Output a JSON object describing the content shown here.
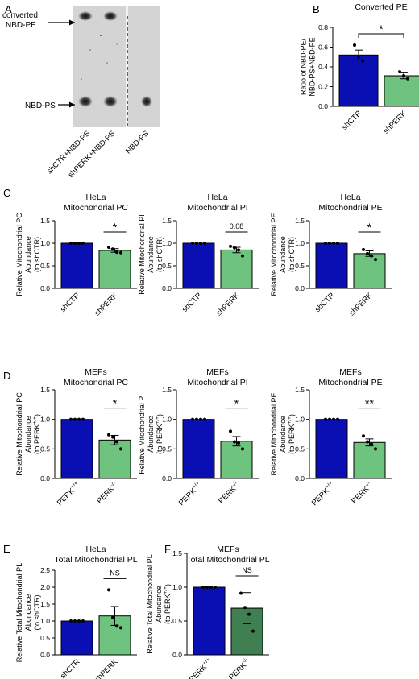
{
  "figure": {
    "blot": {
      "panel": "A",
      "label_top": [
        "converted",
        "NBD-PE"
      ],
      "label_bottom": "NBD-PS",
      "lanes": [
        "shCTR+NBD-PS",
        "shPERK+NBD-PS",
        "NBD-PS"
      ]
    }
  },
  "chart_data": [
    {
      "id": "B",
      "panel": "B",
      "type": "bar",
      "title": [
        "Converted PE"
      ],
      "ylabel": [
        "Ratio of NBD-PE/",
        "NBD-PS+NBD-PE"
      ],
      "categories": [
        "shCTR",
        "shPERK"
      ],
      "values": [
        0.52,
        0.31
      ],
      "errors": [
        0.05,
        0.03
      ],
      "points": [
        [
          0.62,
          0.5,
          0.46
        ],
        [
          0.35,
          0.31,
          0.28
        ]
      ],
      "ylim": [
        0,
        0.8
      ],
      "yticks": [
        "0.0",
        "0.2",
        "0.4",
        "0.6",
        "0.8"
      ],
      "colors": [
        "#0a0fb4",
        "#6ec37e"
      ],
      "significance": "*"
    },
    {
      "id": "C1",
      "panel": "C",
      "type": "bar",
      "title": [
        "HeLa",
        "Mitochondrial PC"
      ],
      "ylabel": [
        "Relative Mitochondrial PC",
        "Abundance",
        "(to shCTR)"
      ],
      "categories": [
        "shCTR",
        "shPERK"
      ],
      "values": [
        1.0,
        0.84
      ],
      "errors": [
        0.0,
        0.04
      ],
      "points": [
        [
          1.0,
          1.0,
          1.0,
          1.0
        ],
        [
          0.91,
          0.87,
          0.8,
          0.79
        ]
      ],
      "ylim": [
        0,
        1.5
      ],
      "yticks": [
        "0.0",
        "0.5",
        "1.0",
        "1.5"
      ],
      "colors": [
        "#0a0fb4",
        "#6ec37e"
      ],
      "significance": "*"
    },
    {
      "id": "C2",
      "type": "bar",
      "title": [
        "HeLa",
        "Mitochondrial PI"
      ],
      "ylabel": [
        "Relative Mitochondrial PI",
        "Abundance",
        "(to shCTR)"
      ],
      "categories": [
        "shCTR",
        "shPERK"
      ],
      "values": [
        1.0,
        0.85
      ],
      "errors": [
        0.0,
        0.06
      ],
      "points": [
        [
          1.0,
          1.0,
          1.0,
          1.0
        ],
        [
          0.93,
          0.9,
          0.85,
          0.72
        ]
      ],
      "ylim": [
        0,
        1.5
      ],
      "yticks": [
        "0.0",
        "0.5",
        "1.0",
        "1.5"
      ],
      "colors": [
        "#0a0fb4",
        "#6ec37e"
      ],
      "significance": "0.08"
    },
    {
      "id": "C3",
      "type": "bar",
      "title": [
        "HeLa",
        "Mitochondrial PE"
      ],
      "ylabel": [
        "Relative Mitochondrial PE",
        "Abundance",
        "(to shCTR)"
      ],
      "categories": [
        "shCTR",
        "shPERK"
      ],
      "values": [
        1.0,
        0.77
      ],
      "errors": [
        0.0,
        0.06
      ],
      "points": [
        [
          1.0,
          1.0,
          1.0,
          1.0
        ],
        [
          0.86,
          0.77,
          0.72,
          0.64
        ]
      ],
      "ylim": [
        0,
        1.5
      ],
      "yticks": [
        "0.0",
        "0.5",
        "1.0",
        "1.5"
      ],
      "colors": [
        "#0a0fb4",
        "#6ec37e"
      ],
      "significance": "*"
    },
    {
      "id": "D1",
      "panel": "D",
      "type": "bar",
      "title": [
        "MEFs",
        "Mitochondrial PC"
      ],
      "ylabel": [
        "Relative Mitochondrial PC",
        "Abundance",
        "(to PERK+/+)"
      ],
      "categories": [
        "PERK+/+",
        "PERK-/-"
      ],
      "values": [
        1.0,
        0.65
      ],
      "errors": [
        0.0,
        0.08
      ],
      "points": [
        [
          1.0,
          1.0,
          1.0,
          1.0
        ],
        [
          0.74,
          0.7,
          0.62,
          0.5
        ]
      ],
      "ylim": [
        0,
        1.5
      ],
      "yticks": [
        "0.0",
        "0.5",
        "1.0",
        "1.5"
      ],
      "colors": [
        "#0a0fb4",
        "#6ec37e"
      ],
      "significance": "*"
    },
    {
      "id": "D2",
      "type": "bar",
      "title": [
        "MEFs",
        "Mitochondrial PI"
      ],
      "ylabel": [
        "Relative Mitochondrial PI",
        "Abundance",
        "(to PERK+/+)"
      ],
      "categories": [
        "PERK+/+",
        "PERK-/-"
      ],
      "values": [
        1.0,
        0.63
      ],
      "errors": [
        0.0,
        0.08
      ],
      "points": [
        [
          1.0,
          1.0,
          1.0,
          1.0
        ],
        [
          0.8,
          0.62,
          0.6,
          0.5
        ]
      ],
      "ylim": [
        0,
        1.5
      ],
      "yticks": [
        "0.0",
        "0.5",
        "1.0",
        "1.5"
      ],
      "colors": [
        "#0a0fb4",
        "#6ec37e"
      ],
      "significance": "*"
    },
    {
      "id": "D3",
      "type": "bar",
      "title": [
        "MEFs",
        "Mitochondrial PE"
      ],
      "ylabel": [
        "Relative Mitochondrial PE",
        "Abundance",
        "(to PERK+/+)"
      ],
      "categories": [
        "PERK+/+",
        "PERK-/-"
      ],
      "values": [
        1.0,
        0.61
      ],
      "errors": [
        0.0,
        0.06
      ],
      "points": [
        [
          1.0,
          1.0,
          1.0,
          1.0
        ],
        [
          0.72,
          0.62,
          0.58,
          0.5
        ]
      ],
      "ylim": [
        0,
        1.5
      ],
      "yticks": [
        "0.0",
        "0.5",
        "1.0",
        "1.5"
      ],
      "colors": [
        "#0a0fb4",
        "#6ec37e"
      ],
      "significance": "**"
    },
    {
      "id": "E",
      "panel": "E",
      "type": "bar",
      "title": [
        "HeLa",
        "Total Mitochondrial PL"
      ],
      "ylabel": [
        "Relative Total Mitochondrial PL",
        "Abundance",
        "(to shCTR)"
      ],
      "categories": [
        "shCTR",
        "shPERK"
      ],
      "values": [
        1.0,
        1.15
      ],
      "errors": [
        0.0,
        0.28
      ],
      "points": [
        [
          1.0,
          1.0,
          1.0,
          1.0
        ],
        [
          1.92,
          1.1,
          0.85,
          0.8
        ]
      ],
      "ylim": [
        0,
        2.5
      ],
      "yticks": [
        "0.0",
        "0.5",
        "1.0",
        "1.5",
        "2.0",
        "2.5"
      ],
      "colors": [
        "#0a0fb4",
        "#6ec37e"
      ],
      "significance": "NS"
    },
    {
      "id": "F",
      "panel": "F",
      "type": "bar",
      "title": [
        "MEFs",
        "Total Mitochondrial PL"
      ],
      "ylabel": [
        "Relative Total Mitochondrial PL",
        "Abundance",
        "(to PERK+/+)"
      ],
      "categories": [
        "PERK+/+",
        "PERK-/-"
      ],
      "values": [
        1.0,
        0.69
      ],
      "errors": [
        0.0,
        0.23
      ],
      "points": [
        [
          1.0,
          1.0,
          1.0,
          1.0
        ],
        [
          0.91,
          0.7,
          0.6,
          0.35
        ]
      ],
      "ylim": [
        0,
        1.5
      ],
      "yticks": [
        "0.0",
        "0.5",
        "1.0",
        "1.5"
      ],
      "colors": [
        "#0a0fb4",
        "#3f7f52"
      ],
      "significance": "NS"
    }
  ]
}
